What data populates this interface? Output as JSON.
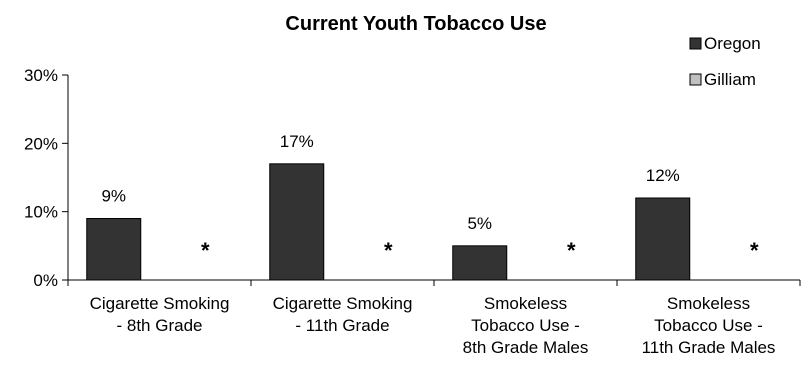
{
  "chart_data": {
    "type": "bar",
    "title": "Current Youth Tobacco Use",
    "categories": [
      [
        "Cigarette Smoking",
        "- 8th Grade"
      ],
      [
        "Cigarette Smoking",
        "- 11th Grade"
      ],
      [
        "Smokeless",
        "Tobacco Use -",
        "8th Grade Males"
      ],
      [
        "Smokeless",
        "Tobacco Use -",
        "11th Grade Males"
      ]
    ],
    "series": [
      {
        "name": "Oregon",
        "color": "#333333",
        "values": [
          9,
          17,
          5,
          12
        ],
        "value_labels": [
          "9%",
          "17%",
          "5%",
          "12%"
        ]
      },
      {
        "name": "Gilliam",
        "color": "#c0c0c0",
        "values": [
          null,
          null,
          null,
          null
        ],
        "value_labels": [
          "*",
          "*",
          "*",
          "*"
        ]
      }
    ],
    "ylim": [
      0,
      30
    ],
    "yticks": [
      0,
      10,
      20,
      30
    ],
    "ytick_labels": [
      "0%",
      "10%",
      "20%",
      "30%"
    ],
    "xlabel": "",
    "ylabel": "",
    "grid": false,
    "legend_position": "top-right"
  }
}
